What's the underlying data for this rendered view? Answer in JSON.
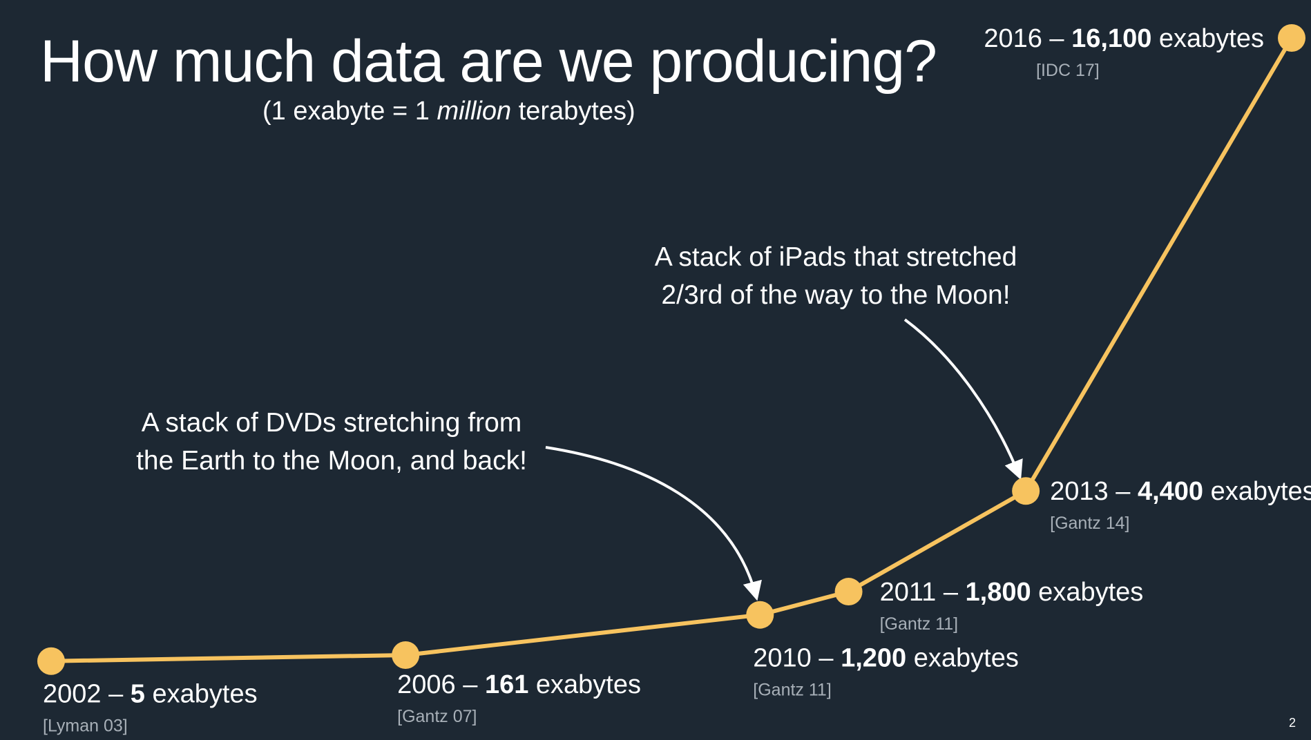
{
  "slide": {
    "title": "How much data are we producing?",
    "subtitle_prefix": "(1 exabyte = 1 ",
    "subtitle_emph": "million",
    "subtitle_suffix": " terabytes)",
    "page_number": "2"
  },
  "annotations": [
    {
      "line1": "A stack of DVDs stretching from",
      "line2": "the Earth to the Moon, and back!"
    },
    {
      "line1": "A stack of iPads that stretched",
      "line2": "2/3rd of the way to the Moon!"
    }
  ],
  "chart_data": {
    "type": "line",
    "title": "How much data are we producing?",
    "xlabel": "",
    "ylabel": "exabytes",
    "unit": "exabytes",
    "x": [
      2002,
      2006,
      2010,
      2011,
      2013,
      2016
    ],
    "values": [
      5,
      161,
      1200,
      1800,
      4400,
      16100
    ],
    "value_labels": [
      "5",
      "161",
      "1,200",
      "1,800",
      "4,400",
      "16,100"
    ],
    "citations": [
      "[Lyman 03]",
      "[Gantz 07]",
      "[Gantz 11]",
      "[Gantz 11]",
      "[Gantz 14]",
      "[IDC 17]"
    ],
    "grid": false,
    "colors": {
      "line": "#f7c35f",
      "point": "#f7c35f",
      "text": "#ffffff",
      "citation": "#a8b0b8",
      "background": "#1d2833"
    }
  }
}
